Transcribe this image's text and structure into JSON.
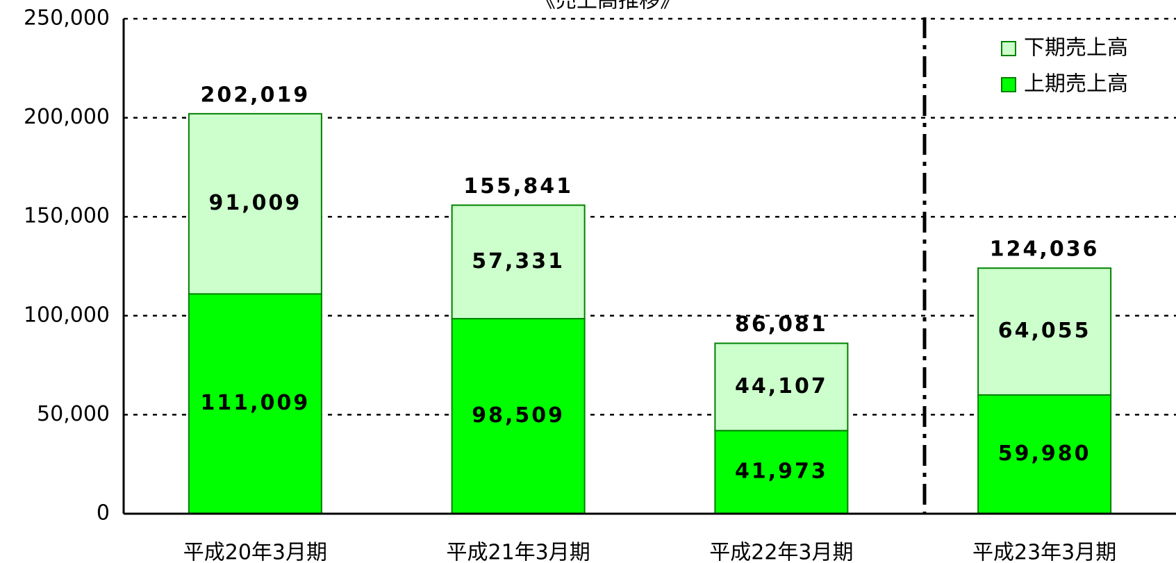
{
  "chart_data": {
    "type": "stacked-bar",
    "title": "《売上高推移》",
    "categories": [
      "平成20年3月期",
      "平成21年3月期",
      "平成22年3月期",
      "平成23年3月期"
    ],
    "series": [
      {
        "name": "上期売上高",
        "color": "#00ff00",
        "values": [
          111009,
          98509,
          41973,
          59980
        ],
        "value_labels": [
          "111,009",
          "98,509",
          "41,973",
          "59,980"
        ]
      },
      {
        "name": "下期売上高",
        "color": "#ccffcc",
        "values": [
          91009,
          57331,
          44107,
          64055
        ],
        "value_labels": [
          "91,009",
          "57,331",
          "44,107",
          "64,055"
        ]
      }
    ],
    "totals": [
      202019,
      155841,
      86081,
      124036
    ],
    "total_labels": [
      "202,019",
      "155,841",
      "86,081",
      "124,036"
    ],
    "ylim": [
      0,
      250000
    ],
    "yticks": [
      0,
      {
        "value": 50000,
        "label": "50,000"
      },
      {
        "value": 100000,
        "label": "100,000"
      },
      {
        "value": 150000,
        "label": "150,000"
      },
      {
        "value": 200000,
        "label": "200,000"
      },
      {
        "value": 250000,
        "label": "250,000"
      }
    ],
    "grid": true,
    "legend": "top-right"
  }
}
